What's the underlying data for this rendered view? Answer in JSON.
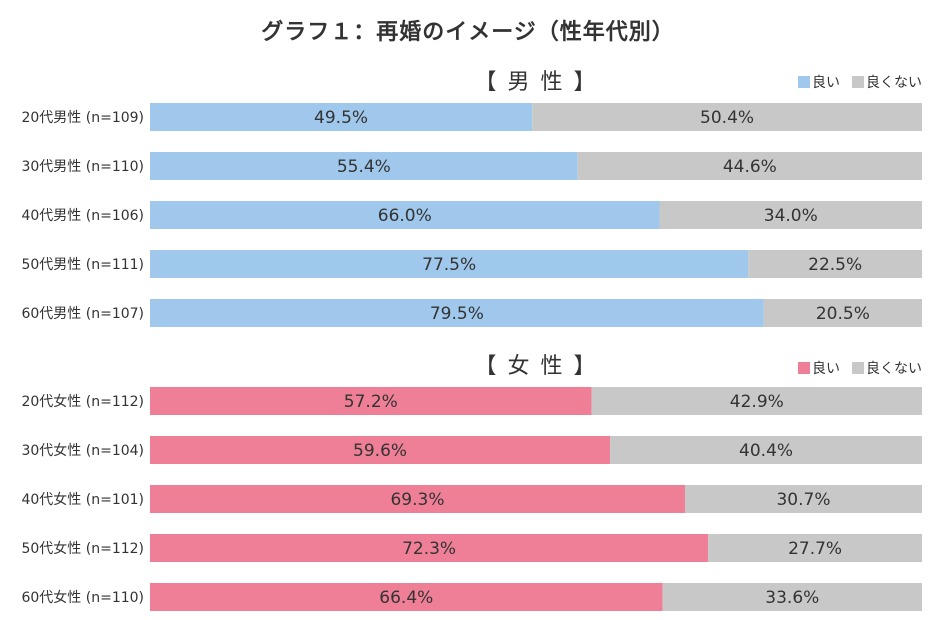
{
  "title": "グラフ１：再婚のイメージ（性年代別）",
  "colors": {
    "good_male": "#9fc8ec",
    "good_female": "#ee7f96",
    "bad": "#c8c8c8"
  },
  "legend": {
    "good": "良い",
    "bad": "良くない"
  },
  "chart_data": [
    {
      "type": "bar",
      "orientation": "horizontal",
      "stacked": true,
      "title": "【 男 性 】",
      "categories": [
        "20代男性 (n=109)",
        "30代男性 (n=110)",
        "40代男性 (n=106)",
        "50代男性 (n=111)",
        "60代男性 (n=107)"
      ],
      "series": [
        {
          "name": "良い",
          "values": [
            49.5,
            55.4,
            66.0,
            77.5,
            79.5
          ],
          "labels": [
            "49.5%",
            "55.4%",
            "66.0%",
            "77.5%",
            "79.5%"
          ]
        },
        {
          "name": "良くない",
          "values": [
            50.4,
            44.6,
            34.0,
            22.5,
            20.5
          ],
          "labels": [
            "50.4%",
            "44.6%",
            "34.0%",
            "22.5%",
            "20.5%"
          ]
        }
      ],
      "xlim": [
        0,
        100
      ],
      "legend_position": "top-right"
    },
    {
      "type": "bar",
      "orientation": "horizontal",
      "stacked": true,
      "title": "【 女 性 】",
      "categories": [
        "20代女性 (n=112)",
        "30代女性 (n=104)",
        "40代女性 (n=101)",
        "50代女性 (n=112)",
        "60代女性 (n=110)"
      ],
      "series": [
        {
          "name": "良い",
          "values": [
            57.2,
            59.6,
            69.3,
            72.3,
            66.4
          ],
          "labels": [
            "57.2%",
            "59.6%",
            "69.3%",
            "72.3%",
            "66.4%"
          ]
        },
        {
          "name": "良くない",
          "values": [
            42.9,
            40.4,
            30.7,
            27.7,
            33.6
          ],
          "labels": [
            "42.9%",
            "40.4%",
            "30.7%",
            "27.7%",
            "33.6%"
          ]
        }
      ],
      "xlim": [
        0,
        100
      ],
      "legend_position": "top-right"
    }
  ]
}
